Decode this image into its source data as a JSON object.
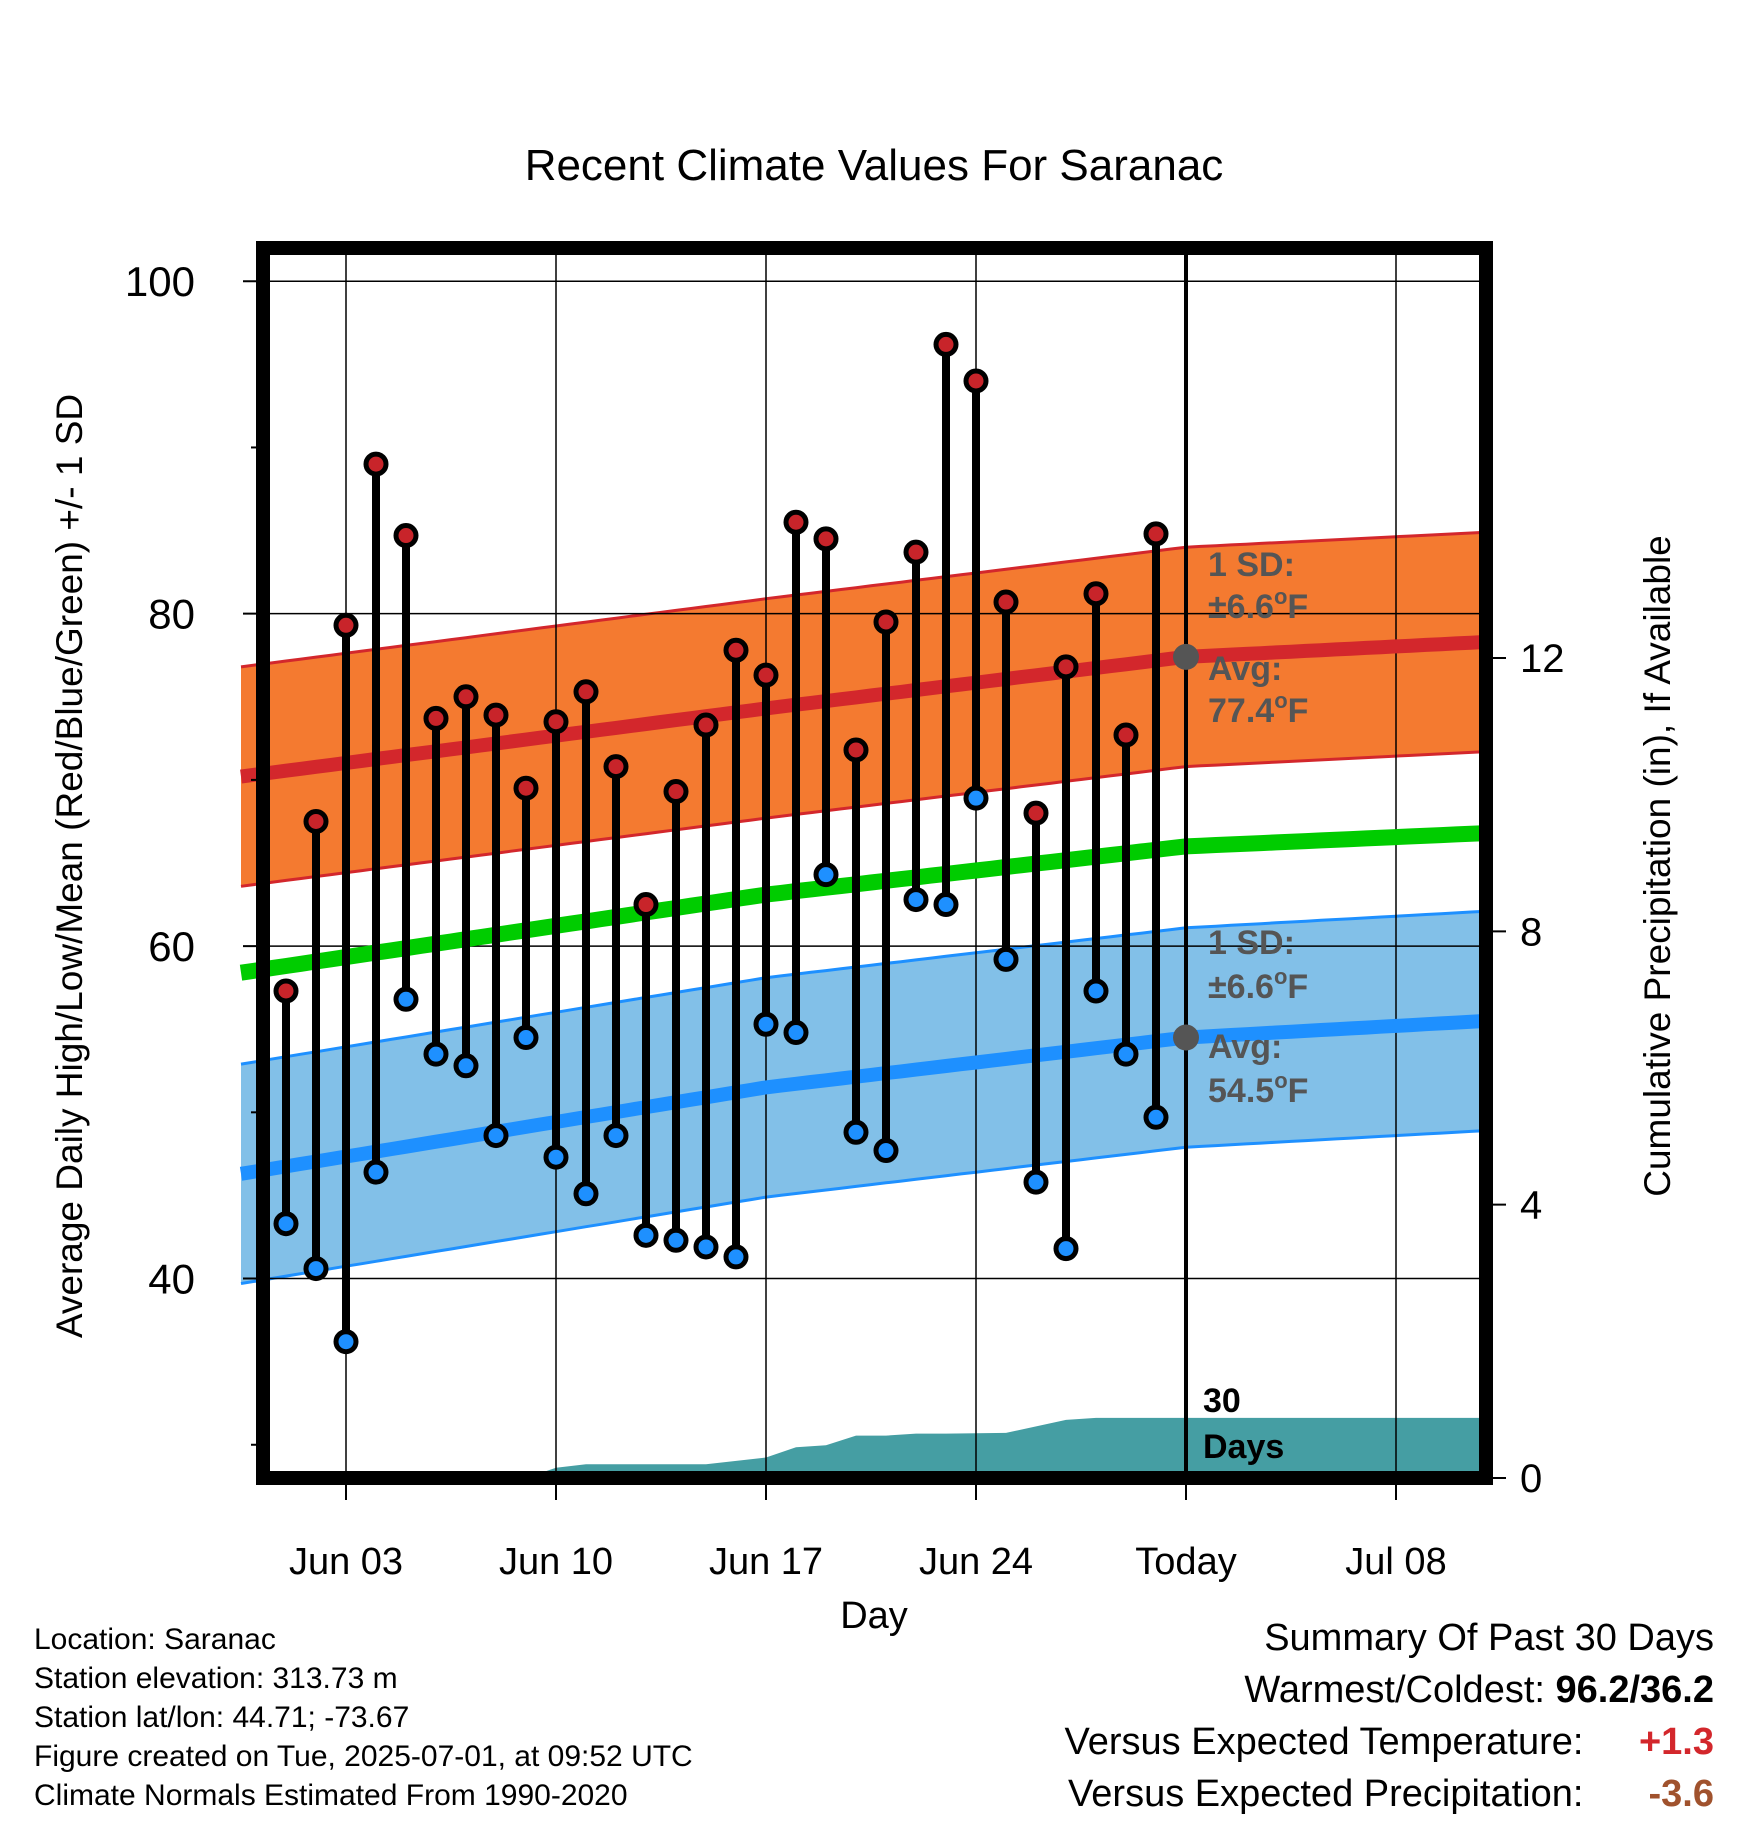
{
  "chart_data": {
    "type": "line",
    "title": "Recent Climate Values For Saranac",
    "xlabel": "Day",
    "ylabel": "Average Daily High/Low/Mean (Red/Blue/Green) +/- 1 SD",
    "y2label": "Cumulative Precipitation (in), If Available",
    "ylim": [
      28,
      102
    ],
    "y2lim": [
      0,
      18
    ],
    "yticks": [
      "40",
      "60",
      "80",
      "100"
    ],
    "y2ticks": [
      "0",
      "4",
      "8",
      "12"
    ],
    "xticks": [
      "Jun 03",
      "Jun 10",
      "Jun 17",
      "Jun 24",
      "Today",
      "Jul 08"
    ],
    "x_range_days": [
      -31.5,
      10
    ],
    "today_line_day": 0,
    "daily": {
      "days": [
        -30,
        -29,
        -28,
        -27,
        -26,
        -25,
        -24,
        -23,
        -22,
        -21,
        -20,
        -19,
        -18,
        -17,
        -16,
        -15,
        -14,
        -13,
        -12,
        -11,
        -10,
        -9,
        -8,
        -7,
        -6,
        -5,
        -4,
        -3,
        -2,
        -1
      ],
      "high": [
        57.3,
        67.5,
        79.3,
        89.0,
        84.7,
        73.7,
        75.0,
        73.9,
        69.5,
        73.5,
        75.3,
        70.8,
        62.5,
        69.3,
        73.3,
        77.8,
        76.3,
        85.5,
        84.5,
        71.8,
        79.5,
        83.7,
        96.2,
        94.0,
        80.7,
        68.0,
        76.8,
        81.2,
        72.7,
        84.8
      ],
      "low": [
        43.3,
        40.6,
        36.2,
        46.4,
        56.8,
        53.5,
        52.8,
        48.6,
        54.5,
        47.3,
        45.1,
        48.6,
        42.6,
        42.3,
        41.9,
        41.3,
        55.3,
        54.8,
        64.3,
        48.8,
        47.7,
        62.8,
        62.5,
        68.9,
        59.2,
        45.8,
        41.8,
        57.3,
        53.5,
        49.7
      ]
    },
    "normals": {
      "days": [
        -31.5,
        -14,
        0,
        10
      ],
      "high_avg": [
        70.2,
        74.3,
        77.4,
        78.3
      ],
      "low_avg": [
        46.3,
        51.5,
        54.5,
        55.5
      ],
      "mean_avg": [
        58.4,
        63.1,
        66.0,
        66.8
      ],
      "sd": 6.6
    },
    "precip_cumulative": {
      "days": [
        -31.5,
        -22,
        -21,
        -20,
        -17,
        -16,
        -14,
        -13,
        -12,
        -11,
        -10,
        -9,
        -8,
        -6,
        -4,
        -3,
        10
      ],
      "values": [
        0,
        0,
        0.15,
        0.2,
        0.2,
        0.2,
        0.3,
        0.45,
        0.48,
        0.62,
        0.62,
        0.65,
        0.65,
        0.66,
        0.85,
        0.88,
        0.88
      ]
    },
    "annotations": {
      "high_sd": "1 SD:",
      "high_sd_val": "±6.6",
      "high_avg_label": "Avg:",
      "high_avg_val": "77.4",
      "low_sd": "1 SD:",
      "low_sd_val": "±6.6",
      "low_avg_label": "Avg:",
      "low_avg_val": "54.5",
      "unit_o": "o",
      "unit_f": "F",
      "days_label_1": "30",
      "days_label_2": "Days"
    },
    "colors": {
      "high_band": "#f47a30",
      "high_line": "#d3272c",
      "low_band": "#82c0e8",
      "low_line": "#1e90ff",
      "mean_line": "#00cc00",
      "precip": "#459ea3",
      "high_dot": "#c8242a",
      "low_dot": "#1e90ff",
      "avg_marker": "#555555",
      "annotation_text": "#555555"
    }
  },
  "footer": {
    "location": "Location: Saranac",
    "elevation": "Station elevation: 313.73 m",
    "latlon": "Station lat/lon: 44.71; -73.67",
    "created": "Figure created on Tue, 2025-07-01, at 09:52 UTC",
    "normals": "Climate Normals Estimated From 1990-2020"
  },
  "summary": {
    "title": "Summary Of Past 30 Days",
    "warm_cold_label": "Warmest/Coldest:",
    "warm_cold_value": "96.2/36.2",
    "temp_label": "Versus Expected Temperature:",
    "temp_value": "+1.3",
    "temp_color": "#d3272c",
    "precip_label": "Versus Expected Precipitation:",
    "precip_value": "-3.6",
    "precip_color": "#a0522d"
  }
}
